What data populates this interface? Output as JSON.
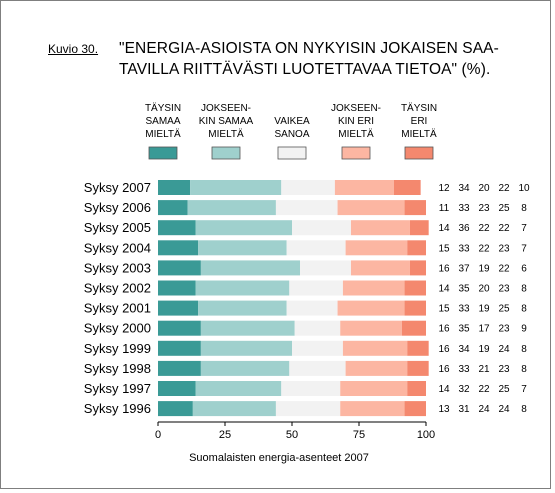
{
  "figure_label": "Kuvio 30.",
  "chart_data": {
    "type": "bar",
    "stacked": true,
    "orientation": "horizontal",
    "percent": true,
    "title": "\"ENERGIA-ASIOISTA ON NYKYISIN JOKAISEN SAATAVILLA RIITTÄVÄSTI LUOTETTAVAA TIETOA\" (%).",
    "title_lines": [
      "\"ENERGIA-ASIOISTA ON NYKYISIN JOKAISEN SAA-",
      "TAVILLA RIITTÄVÄSTI LUOTETTAVAA TIETOA\" (%)."
    ],
    "source": "Suomalaisten energia-asenteet 2007",
    "xlim": [
      0,
      100
    ],
    "xticks": [
      0,
      25,
      50,
      75,
      100
    ],
    "categories": [
      "Syksy 2007",
      "Syksy 2006",
      "Syksy 2005",
      "Syksy 2004",
      "Syksy 2003",
      "Syksy 2002",
      "Syksy 2001",
      "Syksy 2000",
      "Syksy 1999",
      "Syksy 1998",
      "Syksy 1997",
      "Syksy 1996"
    ],
    "series": [
      {
        "name": "TÄYSIN SAMAA MIELTÄ",
        "legend_lines": [
          "TÄYSIN",
          "SAMAA",
          "MIELTÄ"
        ],
        "color": "#3a9a96",
        "values": [
          12,
          11,
          14,
          15,
          16,
          14,
          15,
          16,
          16,
          16,
          14,
          13
        ]
      },
      {
        "name": "JOKSEENKIN SAMAA MIELTÄ",
        "legend_lines": [
          "JOKSEEN-",
          "KIN SAMAA",
          "MIELTÄ"
        ],
        "color": "#9fd0cd",
        "values": [
          34,
          33,
          36,
          33,
          37,
          35,
          33,
          35,
          34,
          33,
          32,
          31
        ]
      },
      {
        "name": "VAIKEA SANOA",
        "legend_lines": [
          "VAIKEA",
          "SANOA"
        ],
        "color": "#f2f2f2",
        "values": [
          20,
          23,
          22,
          22,
          19,
          20,
          19,
          17,
          19,
          21,
          22,
          24
        ]
      },
      {
        "name": "JOKSEENKIN ERI MIELTÄ",
        "legend_lines": [
          "JOKSEEN-",
          "KIN ERI",
          "MIELTÄ"
        ],
        "color": "#fcb6a2",
        "values": [
          22,
          25,
          22,
          23,
          22,
          23,
          25,
          23,
          24,
          23,
          25,
          24
        ]
      },
      {
        "name": "TÄYSIN ERI MIELTÄ",
        "legend_lines": [
          "TÄYSIN",
          "ERI",
          "MIELTÄ"
        ],
        "color": "#f4886e",
        "values": [
          10,
          8,
          7,
          7,
          6,
          8,
          8,
          9,
          8,
          8,
          7,
          8
        ]
      }
    ],
    "grid": false,
    "legend_position": "top"
  }
}
